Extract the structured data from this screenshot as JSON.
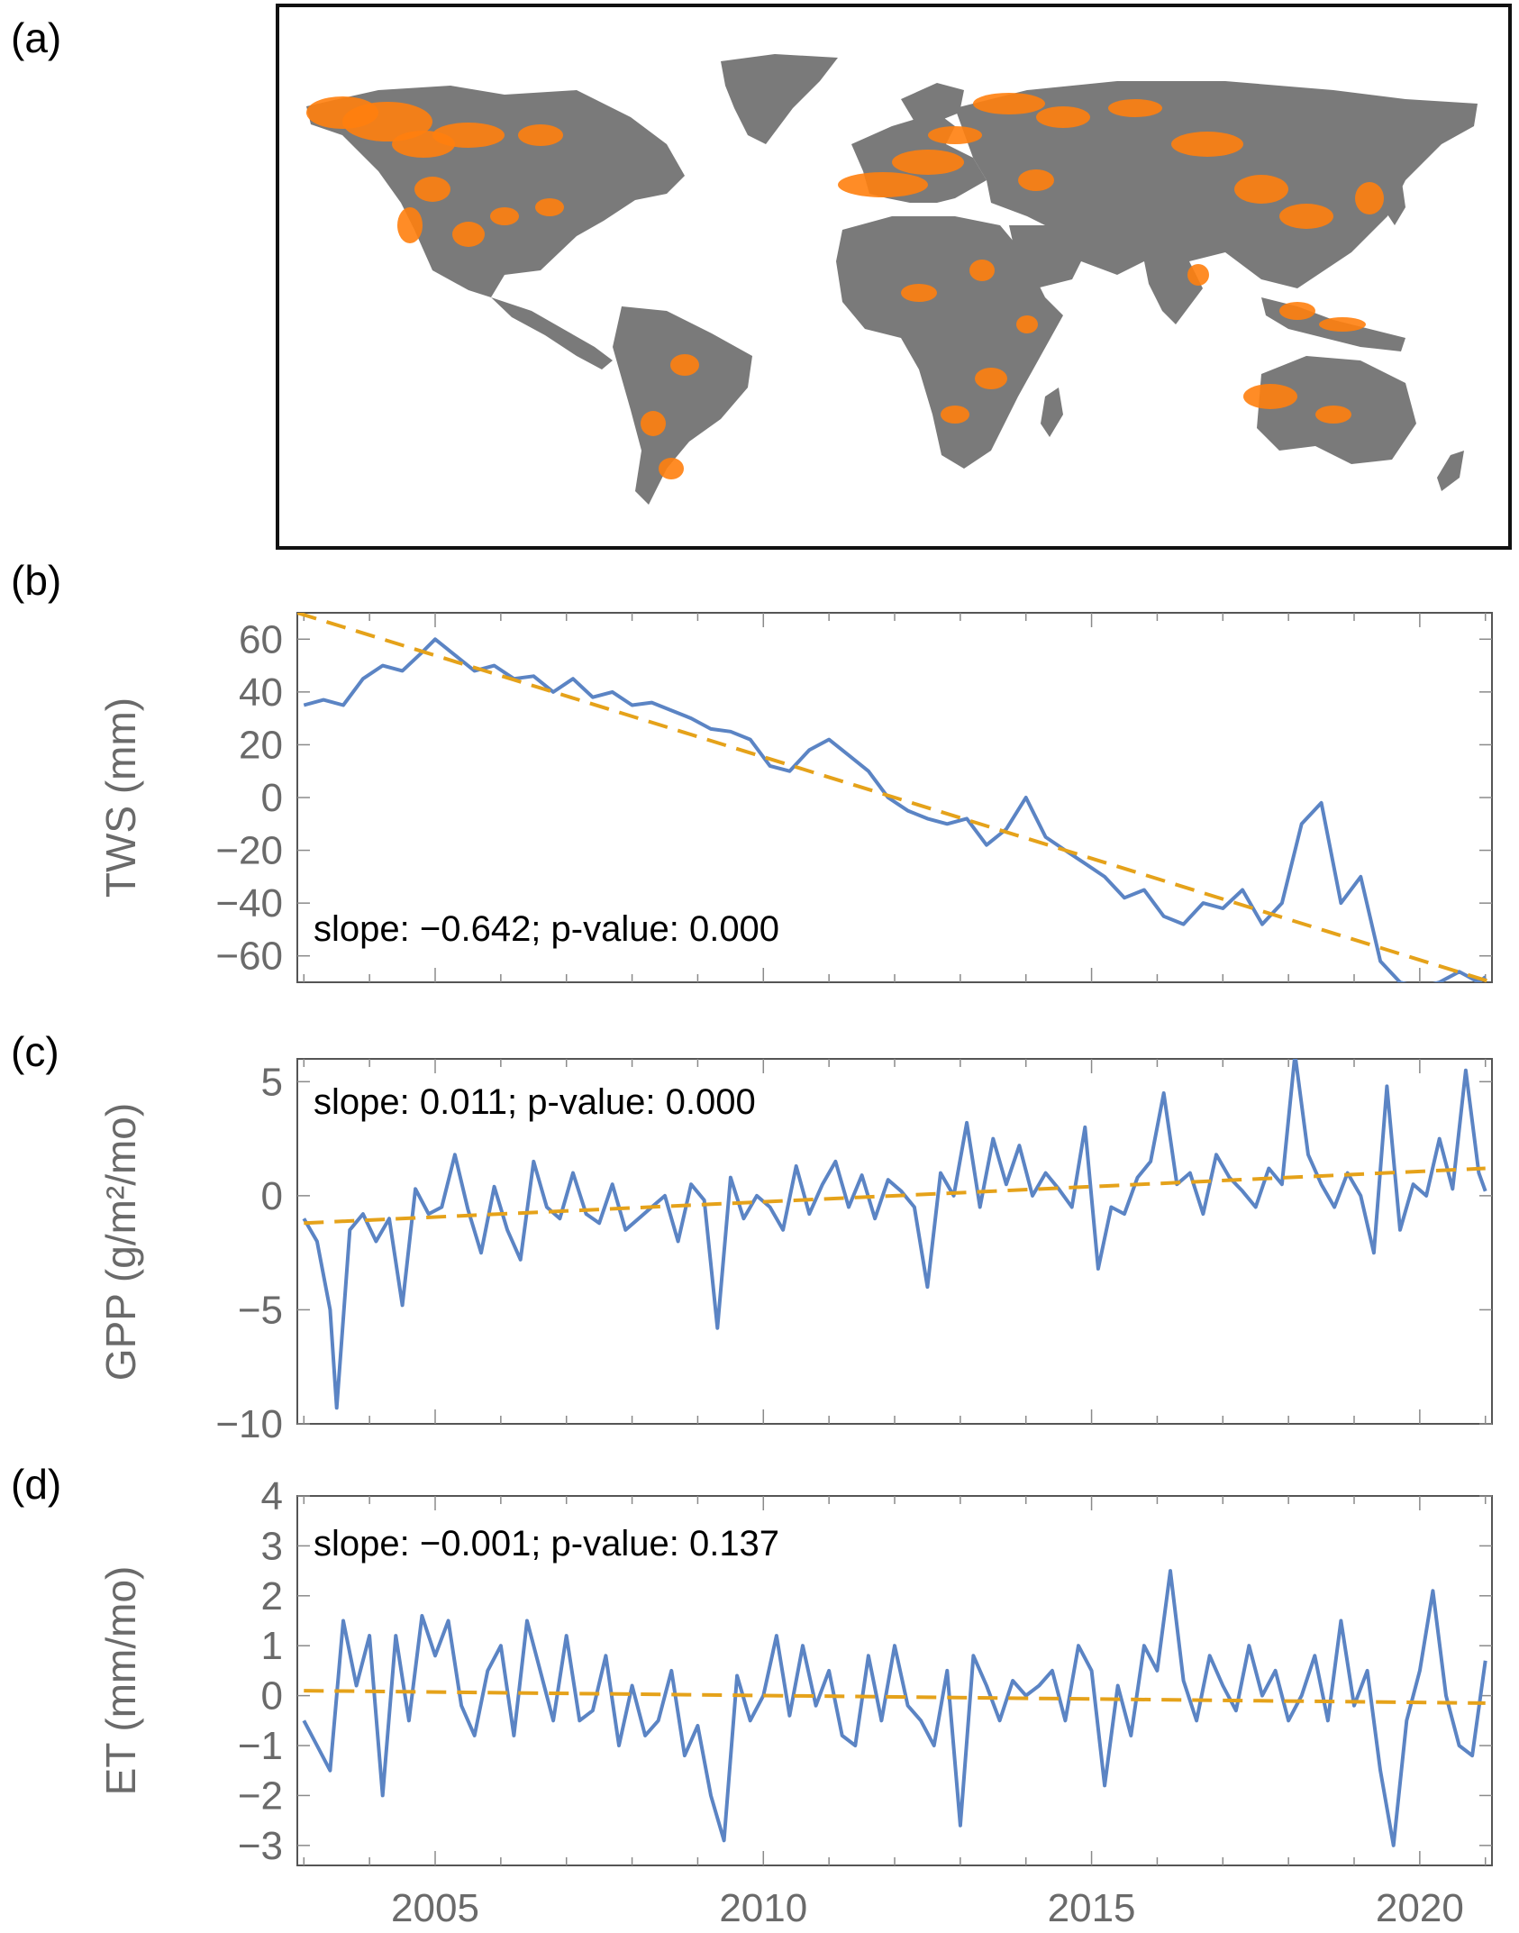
{
  "figure": {
    "panel_labels": [
      "(a)",
      "(b)",
      "(c)",
      "(d)"
    ]
  },
  "map": {
    "land_color": "#7a7a7a",
    "highlight_color": "#ff7f0e",
    "description_hidden": true
  },
  "chart_data": [
    {
      "type": "line",
      "panel": "(b)",
      "ylabel": "TWS (mm)",
      "xlim": [
        2002.9,
        2021.1
      ],
      "ylim": [
        -70,
        70
      ],
      "yticks": [
        -60,
        -40,
        -20,
        0,
        20,
        40,
        60
      ],
      "annotation": "slope: −0.642; p-value: 0.000",
      "series_color": "#5b84c4",
      "trend_color": "#e5a21a",
      "trend": {
        "x": [
          2002.9,
          2021.1
        ],
        "y": [
          70,
          -70
        ]
      },
      "x": [
        2003.0,
        2003.3,
        2003.6,
        2003.9,
        2004.2,
        2004.5,
        2004.8,
        2005.0,
        2005.3,
        2005.6,
        2005.9,
        2006.2,
        2006.5,
        2006.8,
        2007.1,
        2007.4,
        2007.7,
        2008.0,
        2008.3,
        2008.6,
        2008.9,
        2009.2,
        2009.5,
        2009.8,
        2010.1,
        2010.4,
        2010.7,
        2011.0,
        2011.3,
        2011.6,
        2011.9,
        2012.2,
        2012.5,
        2012.8,
        2013.1,
        2013.4,
        2013.7,
        2014.0,
        2014.3,
        2014.6,
        2014.9,
        2015.2,
        2015.5,
        2015.8,
        2016.1,
        2016.4,
        2016.7,
        2017.0,
        2017.3,
        2017.6,
        2017.9,
        2018.2,
        2018.5,
        2018.8,
        2019.1,
        2019.4,
        2019.7,
        2020.0,
        2020.3,
        2020.6,
        2020.9,
        2021.0
      ],
      "y": [
        35,
        37,
        35,
        45,
        50,
        48,
        55,
        60,
        54,
        48,
        50,
        45,
        46,
        40,
        45,
        38,
        40,
        35,
        36,
        33,
        30,
        26,
        25,
        22,
        12,
        10,
        18,
        22,
        16,
        10,
        0,
        -5,
        -8,
        -10,
        -8,
        -18,
        -12,
        0,
        -15,
        -20,
        -25,
        -30,
        -38,
        -35,
        -45,
        -48,
        -40,
        -42,
        -35,
        -48,
        -40,
        -10,
        -2,
        -40,
        -30,
        -62,
        -70,
        -72,
        -70,
        -66,
        -70,
        -68
      ]
    },
    {
      "type": "line",
      "panel": "(c)",
      "ylabel": "GPP (g/m²/mo)",
      "xlim": [
        2002.9,
        2021.1
      ],
      "ylim": [
        -10,
        6
      ],
      "yticks": [
        -10,
        -5,
        0,
        5
      ],
      "annotation": "slope: 0.011; p-value: 0.000",
      "series_color": "#5b84c4",
      "trend_color": "#e5a21a",
      "trend": {
        "x": [
          2003.0,
          2021.0
        ],
        "y": [
          -1.2,
          1.2
        ]
      },
      "x": [
        2003.0,
        2003.2,
        2003.4,
        2003.5,
        2003.7,
        2003.9,
        2004.1,
        2004.3,
        2004.5,
        2004.7,
        2004.9,
        2005.1,
        2005.3,
        2005.5,
        2005.7,
        2005.9,
        2006.1,
        2006.3,
        2006.5,
        2006.7,
        2006.9,
        2007.1,
        2007.3,
        2007.5,
        2007.7,
        2007.9,
        2008.1,
        2008.3,
        2008.5,
        2008.7,
        2008.9,
        2009.1,
        2009.3,
        2009.5,
        2009.7,
        2009.9,
        2010.1,
        2010.3,
        2010.5,
        2010.7,
        2010.9,
        2011.1,
        2011.3,
        2011.5,
        2011.7,
        2011.9,
        2012.1,
        2012.3,
        2012.5,
        2012.7,
        2012.9,
        2013.1,
        2013.3,
        2013.5,
        2013.7,
        2013.9,
        2014.1,
        2014.3,
        2014.5,
        2014.7,
        2014.9,
        2015.1,
        2015.3,
        2015.5,
        2015.7,
        2015.9,
        2016.1,
        2016.3,
        2016.5,
        2016.7,
        2016.9,
        2017.1,
        2017.3,
        2017.5,
        2017.7,
        2017.9,
        2018.1,
        2018.3,
        2018.5,
        2018.7,
        2018.9,
        2019.1,
        2019.3,
        2019.5,
        2019.7,
        2019.9,
        2020.1,
        2020.3,
        2020.5,
        2020.7,
        2020.9,
        2021.0
      ],
      "y": [
        -1.0,
        -2.0,
        -5.0,
        -9.3,
        -1.5,
        -0.8,
        -2.0,
        -1.0,
        -4.8,
        0.3,
        -0.8,
        -0.5,
        1.8,
        -0.6,
        -2.5,
        0.4,
        -1.5,
        -2.8,
        1.5,
        -0.5,
        -1.0,
        1.0,
        -0.8,
        -1.2,
        0.5,
        -1.5,
        -1.0,
        -0.5,
        0.0,
        -2.0,
        0.5,
        -0.2,
        -5.8,
        0.8,
        -1.0,
        0.0,
        -0.5,
        -1.5,
        1.3,
        -0.8,
        0.5,
        1.5,
        -0.5,
        0.9,
        -1.0,
        0.7,
        0.2,
        -0.5,
        -4.0,
        1.0,
        0.0,
        3.2,
        -0.5,
        2.5,
        0.5,
        2.2,
        0.0,
        1.0,
        0.3,
        -0.5,
        3.0,
        -3.2,
        -0.5,
        -0.8,
        0.8,
        1.5,
        4.5,
        0.5,
        1.0,
        -0.8,
        1.8,
        0.8,
        0.2,
        -0.5,
        1.2,
        0.5,
        6.2,
        1.8,
        0.5,
        -0.5,
        1.0,
        0.0,
        -2.5,
        4.8,
        -1.5,
        0.5,
        0.0,
        2.5,
        0.3,
        5.5,
        1.0,
        0.2
      ]
    },
    {
      "type": "line",
      "panel": "(d)",
      "ylabel": "ET (mm/mo)",
      "xlabel": "",
      "xlim": [
        2002.9,
        2021.1
      ],
      "ylim": [
        -3.4,
        4
      ],
      "yticks": [
        -3,
        -2,
        -1,
        0,
        1,
        2,
        3,
        4
      ],
      "xticks": [
        2005,
        2010,
        2015,
        2020
      ],
      "annotation": "slope: −0.001; p-value: 0.137",
      "series_color": "#5b84c4",
      "trend_color": "#e5a21a",
      "trend": {
        "x": [
          2003.0,
          2021.0
        ],
        "y": [
          0.1,
          -0.15
        ]
      },
      "x": [
        2003.0,
        2003.2,
        2003.4,
        2003.6,
        2003.8,
        2004.0,
        2004.2,
        2004.4,
        2004.6,
        2004.8,
        2005.0,
        2005.2,
        2005.4,
        2005.6,
        2005.8,
        2006.0,
        2006.2,
        2006.4,
        2006.6,
        2006.8,
        2007.0,
        2007.2,
        2007.4,
        2007.6,
        2007.8,
        2008.0,
        2008.2,
        2008.4,
        2008.6,
        2008.8,
        2009.0,
        2009.2,
        2009.4,
        2009.6,
        2009.8,
        2010.0,
        2010.2,
        2010.4,
        2010.6,
        2010.8,
        2011.0,
        2011.2,
        2011.4,
        2011.6,
        2011.8,
        2012.0,
        2012.2,
        2012.4,
        2012.6,
        2012.8,
        2013.0,
        2013.2,
        2013.4,
        2013.6,
        2013.8,
        2014.0,
        2014.2,
        2014.4,
        2014.6,
        2014.8,
        2015.0,
        2015.2,
        2015.4,
        2015.6,
        2015.8,
        2016.0,
        2016.2,
        2016.4,
        2016.6,
        2016.8,
        2017.0,
        2017.2,
        2017.4,
        2017.6,
        2017.8,
        2018.0,
        2018.2,
        2018.4,
        2018.6,
        2018.8,
        2019.0,
        2019.2,
        2019.4,
        2019.6,
        2019.8,
        2020.0,
        2020.2,
        2020.4,
        2020.6,
        2020.8,
        2021.0
      ],
      "y": [
        -0.5,
        -1.0,
        -1.5,
        1.5,
        0.2,
        1.2,
        -2.0,
        1.2,
        -0.5,
        1.6,
        0.8,
        1.5,
        -0.2,
        -0.8,
        0.5,
        1.0,
        -0.8,
        1.5,
        0.5,
        -0.5,
        1.2,
        -0.5,
        -0.3,
        0.8,
        -1.0,
        0.2,
        -0.8,
        -0.5,
        0.5,
        -1.2,
        -0.6,
        -2.0,
        -2.9,
        0.4,
        -0.5,
        0.0,
        1.2,
        -0.4,
        1.0,
        -0.2,
        0.5,
        -0.8,
        -1.0,
        0.8,
        -0.5,
        1.0,
        -0.2,
        -0.5,
        -1.0,
        0.5,
        -2.6,
        0.8,
        0.2,
        -0.5,
        0.3,
        0.0,
        0.2,
        0.5,
        -0.5,
        1.0,
        0.5,
        -1.8,
        0.2,
        -0.8,
        1.0,
        0.5,
        2.5,
        0.3,
        -0.5,
        0.8,
        0.2,
        -0.3,
        1.0,
        0.0,
        0.5,
        -0.5,
        0.0,
        0.8,
        -0.5,
        1.5,
        -0.2,
        0.5,
        -1.5,
        -3.0,
        -0.5,
        0.5,
        2.1,
        0.0,
        -1.0,
        -1.2,
        0.7
      ]
    }
  ]
}
